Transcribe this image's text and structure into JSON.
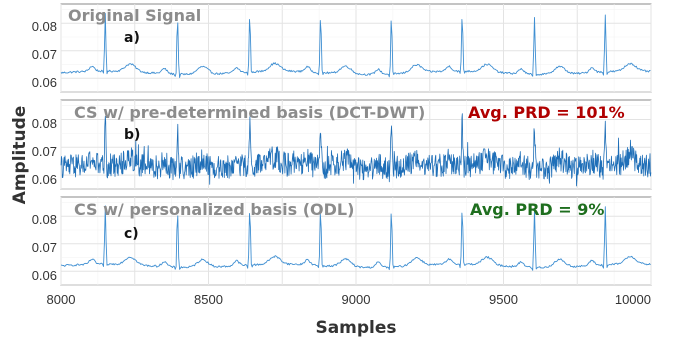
{
  "colors": {
    "signal": "#3f8fd2",
    "signal_noisy": "#1f6fb8",
    "title_gray": "#8c8c8c",
    "prd_red": "#b00000",
    "prd_green": "#1e6e1e"
  },
  "chart_data": {
    "type": "line",
    "xlabel": "Samples",
    "ylabel": "Amplitude",
    "xlim": [
      8000,
      10000
    ],
    "x_ticks": [
      "8000",
      "8500",
      "9000",
      "9500",
      "10000"
    ],
    "y_ticks": [
      "0.08",
      "0.07",
      "0.06"
    ],
    "grid": true,
    "panels": [
      {
        "title": "Original Signal",
        "label": "a)",
        "prd": "",
        "ylim": [
          0.055,
          0.087
        ],
        "baseline": 0.062,
        "peak_amplitude": 0.083,
        "r_peaks_x": [
          8150,
          8395,
          8640,
          8880,
          9120,
          9360,
          9605,
          9845
        ],
        "noise_level": "low"
      },
      {
        "title": "CS w/ pre-determined basis (DCT-DWT)",
        "label": "b)",
        "prd": "Avg. PRD = 101%",
        "ylim": [
          0.055,
          0.087
        ],
        "baseline": 0.063,
        "peak_amplitude": 0.078,
        "r_peaks_x": [
          8150,
          8395,
          8640,
          8880,
          9120,
          9360,
          9605,
          9845
        ],
        "noise_level": "high"
      },
      {
        "title": "CS w/ personalized basis (ODL)",
        "label": "c)",
        "prd": "Avg. PRD = 9%",
        "ylim": [
          0.055,
          0.087
        ],
        "baseline": 0.062,
        "peak_amplitude": 0.083,
        "r_peaks_x": [
          8150,
          8395,
          8640,
          8880,
          9120,
          9360,
          9605,
          9845
        ],
        "noise_level": "low"
      }
    ]
  }
}
